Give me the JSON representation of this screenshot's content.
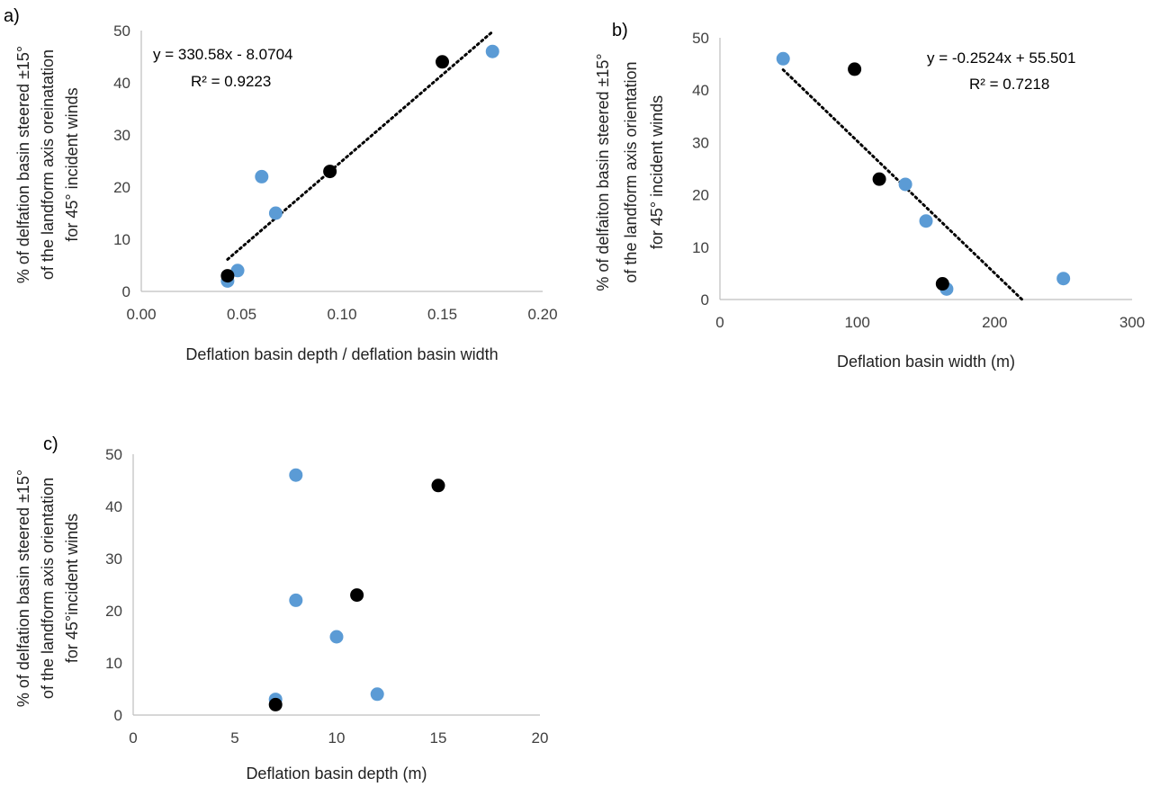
{
  "colors": {
    "blue": "#5b9bd5",
    "black": "#000000"
  },
  "chart_data": [
    {
      "panel_label": "a)",
      "type": "scatter",
      "xlabel": "Deflation basin depth / deflation basin width",
      "ylabel": [
        "% of delfation basin steered ±15°",
        "of the landform axis oreinatation",
        "for 45° incident winds"
      ],
      "xlim": [
        0,
        0.2
      ],
      "ylim": [
        0,
        50
      ],
      "xticks": [
        "0.00",
        "0.05",
        "0.10",
        "0.15",
        "0.20"
      ],
      "yticks": [
        "0",
        "10",
        "20",
        "30",
        "40",
        "50"
      ],
      "series": [
        {
          "color": "blue",
          "points": [
            [
              0.043,
              2
            ],
            [
              0.048,
              4
            ],
            [
              0.06,
              22
            ],
            [
              0.067,
              15
            ],
            [
              0.175,
              46
            ]
          ]
        },
        {
          "color": "black",
          "points": [
            [
              0.043,
              3
            ],
            [
              0.094,
              23
            ],
            [
              0.15,
              44
            ]
          ]
        }
      ],
      "trendline": {
        "slope": 330.58,
        "intercept": -8.0704,
        "x_range": [
          0.043,
          0.175
        ]
      },
      "equation": "y = 330.58x - 8.0704",
      "r2": "R² = 0.9223"
    },
    {
      "panel_label": "b)",
      "type": "scatter",
      "xlabel": "Deflation basin width (m)",
      "ylabel": [
        "% of delfaiton basin steered ±15°",
        "of the landform axis orientation",
        "for 45° incident winds"
      ],
      "xlim": [
        0,
        300
      ],
      "ylim": [
        0,
        50
      ],
      "xticks": [
        "0",
        "100",
        "200",
        "300"
      ],
      "yticks": [
        "0",
        "10",
        "20",
        "30",
        "40",
        "50"
      ],
      "series": [
        {
          "color": "blue",
          "points": [
            [
              46,
              46
            ],
            [
              135,
              22
            ],
            [
              150,
              15
            ],
            [
              165,
              2
            ],
            [
              250,
              4
            ]
          ]
        },
        {
          "color": "black",
          "points": [
            [
              98,
              44
            ],
            [
              116,
              23
            ],
            [
              162,
              3
            ]
          ]
        }
      ],
      "trendline": {
        "slope": -0.2524,
        "intercept": 55.501,
        "x_range": [
          46,
          220
        ]
      },
      "equation": "y = -0.2524x + 55.501",
      "r2": "R² = 0.7218"
    },
    {
      "panel_label": "c)",
      "type": "scatter",
      "xlabel": "Deflation basin depth (m)",
      "ylabel": [
        "% of delfation basin steered ±15°",
        "of the landform axis orientation",
        "for 45°incident winds"
      ],
      "xlim": [
        0,
        20
      ],
      "ylim": [
        0,
        50
      ],
      "xticks": [
        "0",
        "5",
        "10",
        "15",
        "20"
      ],
      "yticks": [
        "0",
        "10",
        "20",
        "30",
        "40",
        "50"
      ],
      "series": [
        {
          "color": "blue",
          "points": [
            [
              8,
              46
            ],
            [
              8,
              22
            ],
            [
              10,
              15
            ],
            [
              12,
              4
            ],
            [
              7,
              3
            ]
          ]
        },
        {
          "color": "black",
          "points": [
            [
              15,
              44
            ],
            [
              11,
              23
            ],
            [
              7,
              2
            ]
          ]
        }
      ]
    }
  ]
}
